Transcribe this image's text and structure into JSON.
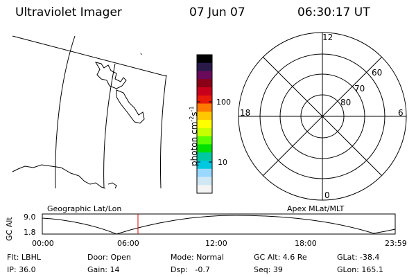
{
  "header": {
    "title": "Ultraviolet Imager",
    "date": "07 Jun 07",
    "time": "06:30:17 UT"
  },
  "colorbar": {
    "label_main": "photon cm",
    "label_exp1": "-2",
    "label_mid": "s",
    "label_exp2": "-1",
    "ticks": [
      "100",
      "10"
    ],
    "colors": [
      "#000000",
      "#2a1a4a",
      "#6a0a5a",
      "#8a0016",
      "#c8001c",
      "#e81a0a",
      "#ff7a00",
      "#ffc800",
      "#ffff00",
      "#c8ff00",
      "#5aff00",
      "#00e000",
      "#00c8a0",
      "#00c8e0",
      "#9ad8ff",
      "#d0e8f4",
      "#f4f4f4"
    ]
  },
  "polar": {
    "mlt_labels": [
      "12",
      "18",
      "6",
      "0"
    ],
    "lat_labels": [
      "60",
      "70",
      "80"
    ]
  },
  "timeline": {
    "left_caption": "Geographic Lat/Lon",
    "right_caption": "Apex MLat/MLT",
    "yaxis_title": "GC Alt",
    "y_max": "9.0",
    "y_min": "1.8",
    "time_ticks": [
      "00:00",
      "06:00",
      "12:00",
      "18:00",
      "23:59"
    ],
    "current_time_hours": 6.505,
    "marker_color": "#e00000"
  },
  "status": {
    "flt": "Flt: LBHL",
    "ip": "IP: 36.0",
    "door": "Door: Open",
    "gain": "Gain: 14",
    "mode": "Mode: Normal",
    "dsp": "Dsp:   -0.7",
    "gcalt": "GC Alt: 4.6 Re",
    "seq": "Seq: 39",
    "glat": "GLat: -38.4",
    "glon": "GLon: 165.1"
  }
}
